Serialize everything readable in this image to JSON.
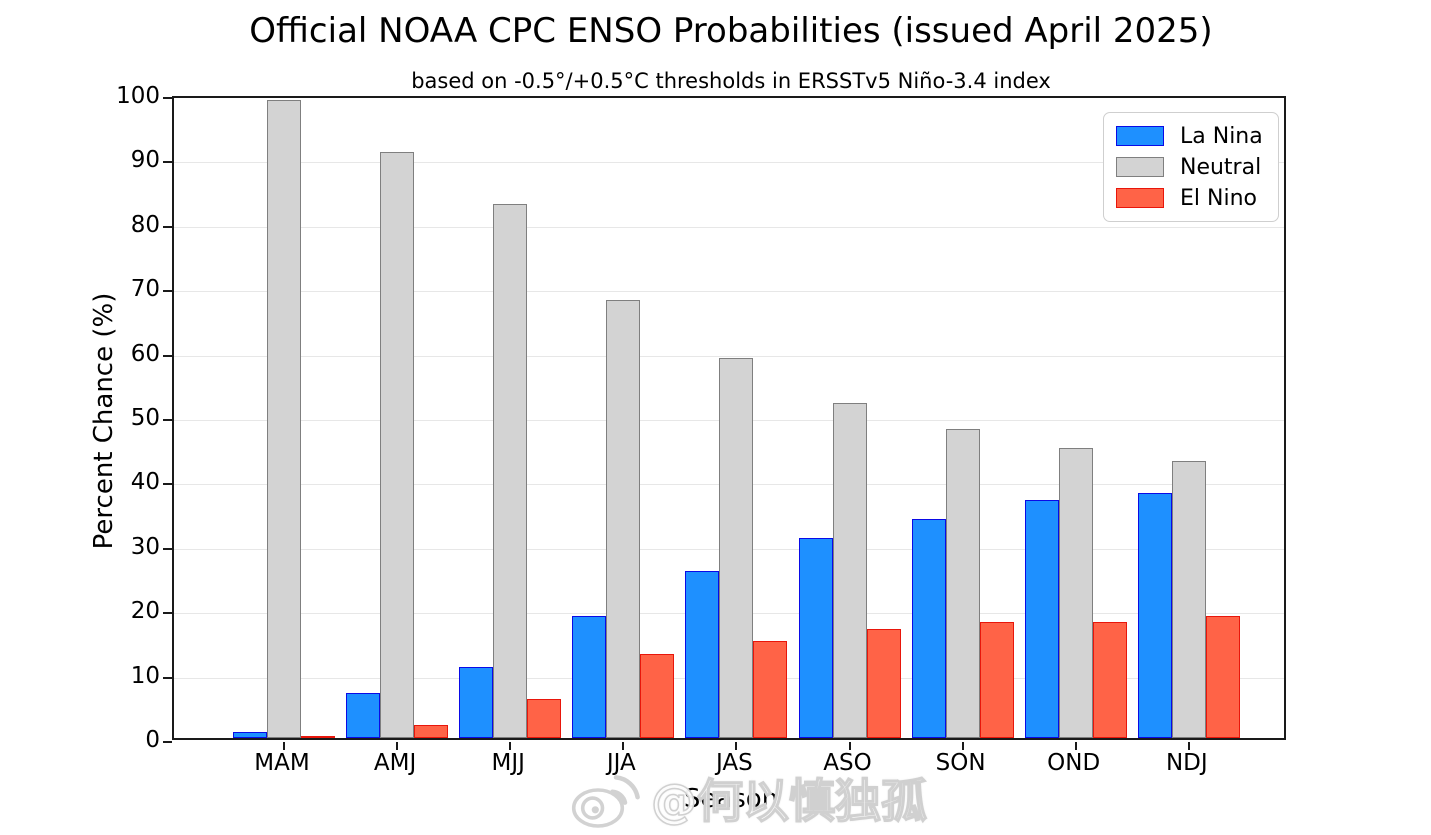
{
  "watermark": {
    "icon": "weibo-icon",
    "text": "@何以慎独孤"
  },
  "chart_data": {
    "type": "bar",
    "title": "Official NOAA CPC ENSO Probabilities (issued April 2025)",
    "subtitle": "based on -0.5°/+0.5°C thresholds in ERSSTv5 Niño-3.4 index",
    "xlabel": "Season",
    "ylabel": "Percent Chance (%)",
    "ylim": [
      0,
      100
    ],
    "yticks": [
      0,
      10,
      20,
      30,
      40,
      50,
      60,
      70,
      80,
      90,
      100
    ],
    "grid": true,
    "legend_position": "upper right",
    "categories": [
      "MAM",
      "AMJ",
      "MJJ",
      "JJA",
      "JAS",
      "ASO",
      "SON",
      "OND",
      "NDJ"
    ],
    "series": [
      {
        "name": "La Nina",
        "fill": "#1E90FF",
        "edge": "#0A0AE6",
        "values": [
          1,
          7,
          11,
          19,
          26,
          31,
          34,
          37,
          38
        ]
      },
      {
        "name": "Neutral",
        "fill": "#D3D3D3",
        "edge": "#7F7F7F",
        "values": [
          99,
          91,
          83,
          68,
          59,
          52,
          48,
          45,
          43
        ]
      },
      {
        "name": "El Nino",
        "fill": "#FF6347",
        "edge": "#E8160B",
        "values": [
          0,
          2,
          6,
          13,
          15,
          17,
          18,
          18,
          19
        ]
      }
    ]
  }
}
